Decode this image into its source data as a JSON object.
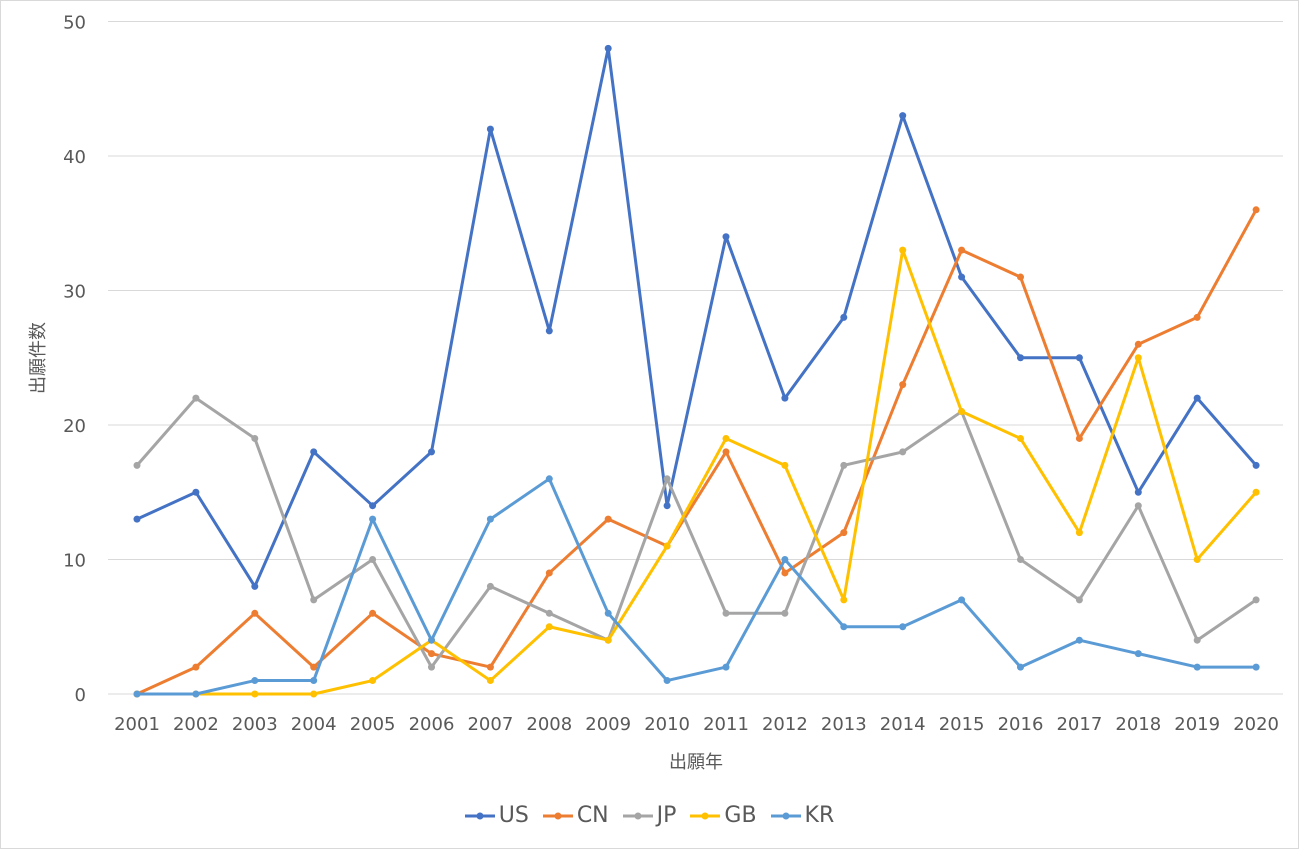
{
  "chart_data": {
    "type": "line",
    "title": "",
    "xlabel": "出願年",
    "ylabel": "出願件数",
    "ylim": [
      0,
      50
    ],
    "yticks": [
      0,
      10,
      20,
      30,
      40,
      50
    ],
    "grid": true,
    "legend_position": "bottom",
    "categories": [
      "2001",
      "2002",
      "2003",
      "2004",
      "2005",
      "2006",
      "2007",
      "2008",
      "2009",
      "2010",
      "2011",
      "2012",
      "2013",
      "2014",
      "2015",
      "2016",
      "2017",
      "2018",
      "2019",
      "2020"
    ],
    "series": [
      {
        "name": "US",
        "color": "#4472c4",
        "values": [
          13,
          15,
          8,
          18,
          14,
          18,
          42,
          27,
          48,
          14,
          34,
          22,
          28,
          43,
          31,
          25,
          25,
          15,
          22,
          17
        ]
      },
      {
        "name": "CN",
        "color": "#ed7d31",
        "values": [
          0,
          2,
          6,
          2,
          6,
          3,
          2,
          9,
          13,
          11,
          18,
          9,
          12,
          23,
          33,
          31,
          19,
          26,
          28,
          36
        ]
      },
      {
        "name": "JP",
        "color": "#a5a5a5",
        "values": [
          17,
          22,
          19,
          7,
          10,
          2,
          8,
          6,
          4,
          16,
          6,
          6,
          17,
          18,
          21,
          10,
          7,
          14,
          4,
          7
        ]
      },
      {
        "name": "GB",
        "color": "#ffc000",
        "values": [
          0,
          0,
          0,
          0,
          1,
          4,
          1,
          5,
          4,
          11,
          19,
          17,
          7,
          33,
          21,
          19,
          12,
          25,
          10,
          15
        ]
      },
      {
        "name": "KR",
        "color": "#5b9bd5",
        "values": [
          0,
          0,
          1,
          1,
          13,
          4,
          13,
          16,
          6,
          1,
          2,
          10,
          5,
          5,
          7,
          2,
          4,
          3,
          2,
          2
        ]
      }
    ]
  }
}
